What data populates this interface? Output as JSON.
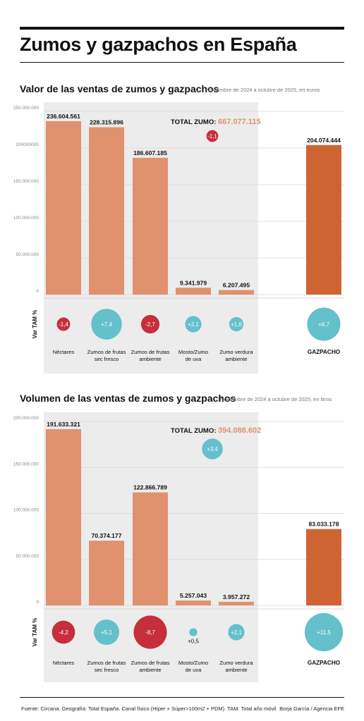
{
  "title": "Zumos y gazpachos en España",
  "colors": {
    "bar": "#e0916d",
    "gazpacho": "#cf6433",
    "pos": "#64c0ca",
    "neg": "#c72e3c",
    "panel": "#ececec",
    "grid": "#d6d6d6",
    "total": "#e0916d"
  },
  "footer": {
    "source": "Fuente: Circana. Geografía: Total España. Canal físico (Híper + Súper>100m2 + PDM). TAM: Total año móvil",
    "credit": "Borja García / Agencia EFE"
  },
  "charts": [
    {
      "title": "Valor de las ventas de zumos y gazpachos",
      "subtitle": "Noviembre de 2024 a octubre de 2025, en euros",
      "total_label": "TOTAL ZUMO:",
      "total_value": "667.077.115",
      "total_var": "-1,1",
      "var_axis_label": "Var TAM %"
    },
    {
      "title": "Volumen de las ventas de zumos y gazpachos",
      "subtitle": "Noviembre de 2024 a octubre de 2025, en litros",
      "total_label": "TOTAL ZUMO:",
      "total_value": "394.088.602",
      "total_var": "+3,4",
      "var_axis_label": "Var TAM %"
    }
  ],
  "chart_data": [
    {
      "type": "bar",
      "title": "Valor de las ventas de zumos y gazpachos",
      "subtitle": "Noviembre de 2024 a octubre de 2025, en euros",
      "categories": [
        "Néctares",
        "Zumos de frutas sec fresco",
        "Zumos de frutas ambiente",
        "Mosto/Zumo de uva",
        "Zumo verdura ambiente",
        "GAZPACHO"
      ],
      "category_lines": [
        [
          "Néctares"
        ],
        [
          "Zumos de frutas",
          "sec fresco"
        ],
        [
          "Zumos de frutas",
          "ambiente"
        ],
        [
          "Mosto/Zumo",
          "de uva"
        ],
        [
          "Zumo verdura",
          "ambiente"
        ],
        [
          "GAZPACHO"
        ]
      ],
      "values": [
        236604561,
        228315896,
        186607185,
        9341979,
        6207495,
        204074444
      ],
      "value_labels": [
        "236.604.561",
        "228.315.896",
        "186.607.185",
        "9.341.979",
        "6.207.495",
        "204.074.444"
      ],
      "var_tam": [
        -1.4,
        7.4,
        -2.7,
        2.1,
        1.6,
        8.7
      ],
      "var_tam_labels": [
        "-1,4",
        "+7,4",
        "-2,7",
        "+2,1",
        "+1,6",
        "+8,7"
      ],
      "ylim": [
        0,
        250000000
      ],
      "yticks": [
        0,
        50000000,
        100000000,
        150000000,
        200000000,
        250000000
      ],
      "ytick_labels": [
        "0",
        "50.000.000",
        "100.000.000",
        "150.000.000",
        "200000000",
        "250.000.000"
      ],
      "ylabel": "Var TAM %",
      "grid": true,
      "total_zumo": 667077115,
      "total_zumo_var": -1.1
    },
    {
      "type": "bar",
      "title": "Volumen de las ventas de zumos y gazpachos",
      "subtitle": "Noviembre de 2024 a octubre de 2025, en litros",
      "categories": [
        "Néctares",
        "Zumos de frutas sec fresco",
        "Zumos de frutas ambiente",
        "Mosto/Zumo de uva",
        "Zumo verdura ambiente",
        "GAZPACHO"
      ],
      "category_lines": [
        [
          "Néctares"
        ],
        [
          "Zumos de frutas",
          "sec fresco"
        ],
        [
          "Zumos de frutas",
          "ambiente"
        ],
        [
          "Mosto/Zumo",
          "de uva"
        ],
        [
          "Zumo verdura",
          "ambiente"
        ],
        [
          "GAZPACHO"
        ]
      ],
      "values": [
        191633321,
        70374177,
        122866789,
        5257043,
        3957272,
        83033178
      ],
      "value_labels": [
        "191.633.321",
        "70.374.177",
        "122.866.789",
        "5.257.043",
        "3.957.272",
        "83.033.178"
      ],
      "var_tam": [
        -4.2,
        5.1,
        -8.7,
        0.5,
        2.1,
        11.5
      ],
      "var_tam_labels": [
        "-4,2",
        "+5,1",
        "-8,7",
        "+0,5",
        "+2,1",
        "+11,5"
      ],
      "ylim": [
        0,
        200000000
      ],
      "yticks": [
        0,
        50000000,
        100000000,
        150000000,
        200000000
      ],
      "ytick_labels": [
        "0",
        "50.000.000",
        "100.000.000",
        "150.000.000",
        "200.000.000"
      ],
      "ylabel": "Var TAM %",
      "grid": true,
      "total_zumo": 394088602,
      "total_zumo_var": 3.4
    }
  ]
}
